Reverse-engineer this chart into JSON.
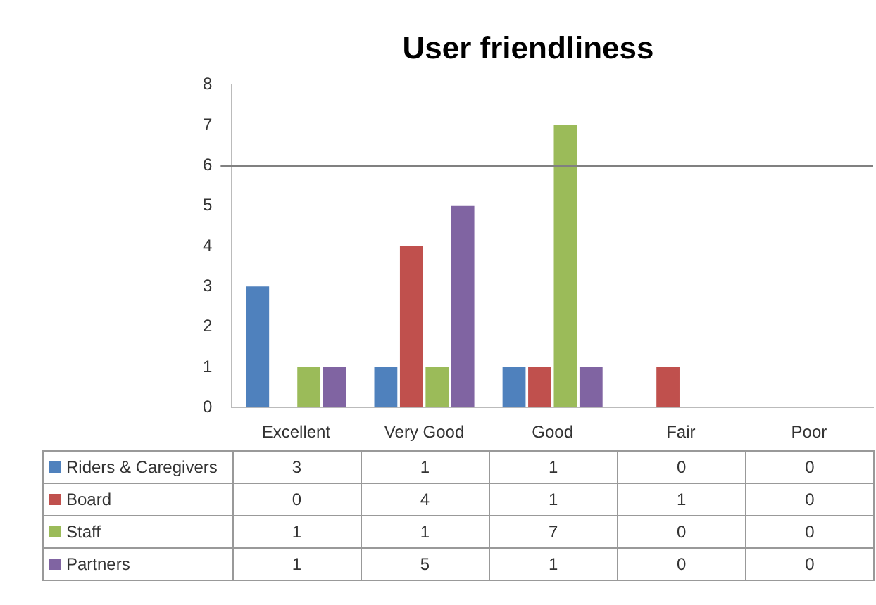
{
  "chart_data": {
    "type": "bar",
    "title": "User friendliness",
    "categories": [
      "Excellent",
      "Very Good",
      "Good",
      "Fair",
      "Poor"
    ],
    "series": [
      {
        "name": "Riders & Caregivers",
        "color": "#4f81bd",
        "values": [
          3,
          1,
          1,
          0,
          0
        ]
      },
      {
        "name": "Board",
        "color": "#c0504d",
        "values": [
          0,
          4,
          1,
          1,
          0
        ]
      },
      {
        "name": "Staff",
        "color": "#9bbb59",
        "values": [
          1,
          1,
          7,
          0,
          0
        ]
      },
      {
        "name": "Partners",
        "color": "#8064a2",
        "values": [
          1,
          5,
          1,
          0,
          0
        ]
      }
    ],
    "ylim": [
      0,
      8
    ],
    "yticks": [
      0,
      1,
      2,
      3,
      4,
      5,
      6,
      7,
      8
    ],
    "grid": false,
    "legend": "bottom",
    "data_labels": true,
    "ref_lines": [
      {
        "axis": "y",
        "value": 6,
        "color": "#808080"
      }
    ]
  }
}
